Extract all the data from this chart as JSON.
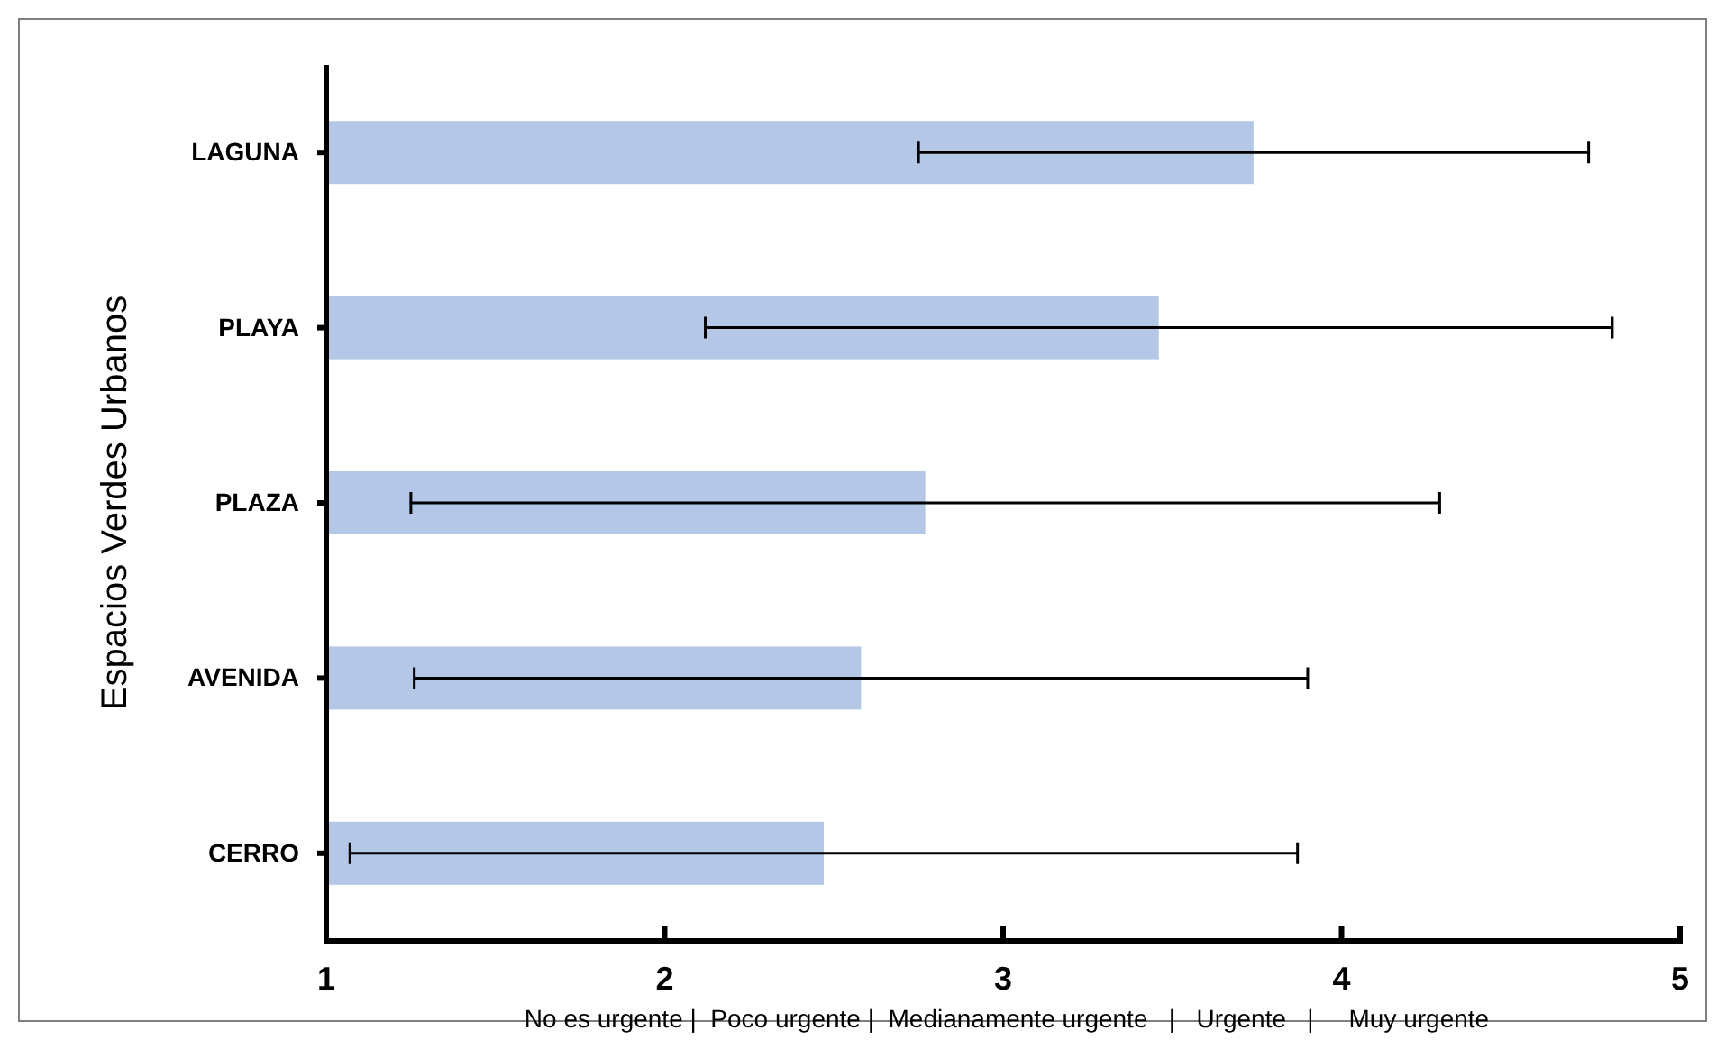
{
  "chart_data": {
    "type": "bar",
    "orientation": "horizontal",
    "categories": [
      "LAGUNA",
      "PLAYA",
      "PLAZA",
      "AVENIDA",
      "CERRO"
    ],
    "values": [
      3.74,
      3.46,
      2.77,
      2.58,
      2.47
    ],
    "errors": [
      0.99,
      1.34,
      1.52,
      1.32,
      1.4
    ],
    "color": "#b4c7e7",
    "xlim": [
      1,
      5
    ],
    "xticks": [
      1,
      2,
      3,
      4,
      5
    ],
    "ylabel": "Espacios Verdes Urbanos",
    "xlabel": "No es urgente |  Poco urgente |  Medianamente urgente   |   Urgente   |     Muy urgente",
    "grid": false
  }
}
